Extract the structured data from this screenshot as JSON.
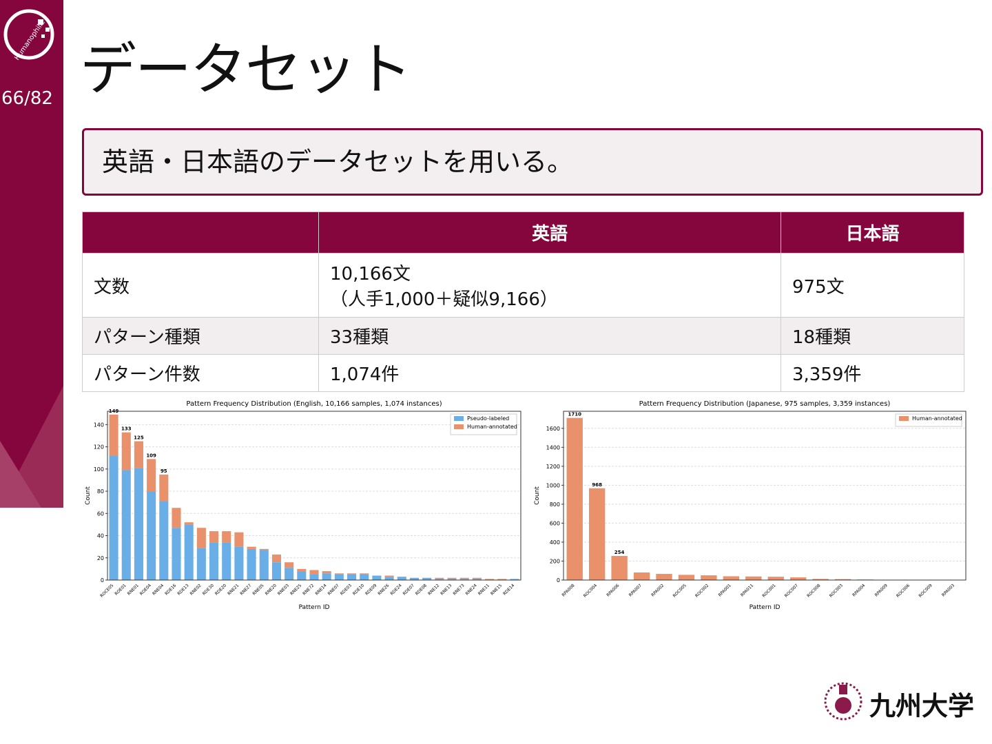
{
  "sidebar": {
    "logo_text": "Humanophilic",
    "page": "66/82"
  },
  "title": "データセット",
  "callout": "英語・日本語のデータセットを用いる。",
  "table": {
    "header": [
      "英語",
      "日本語"
    ],
    "rows": [
      {
        "label": "文数",
        "cells": [
          [
            "10,166文",
            "（人手1,000＋疑似9,166）"
          ],
          [
            "975文"
          ]
        ]
      },
      {
        "label": "パターン種類",
        "cells": [
          [
            "33種類"
          ],
          [
            "18種類"
          ]
        ]
      },
      {
        "label": "パターン件数",
        "cells": [
          [
            "1,074件"
          ],
          [
            "3,359件"
          ]
        ]
      }
    ]
  },
  "chart_data": [
    {
      "type": "bar",
      "stacked": true,
      "title": "Pattern Frequency Distribution (English, 10,166 samples, 1,074 instances)",
      "x_label": "Pattern ID",
      "y_label": "Count",
      "categories": [
        "ROCE05",
        "ROE01",
        "RNE01",
        "ROE04",
        "RNE04",
        "RDE16",
        "RDE13",
        "RNE02",
        "RDE30",
        "RDE20",
        "RNE21",
        "RNE27",
        "RNE05",
        "RNE20",
        "RNE03",
        "RNE25",
        "RNE72",
        "RNE14",
        "RNE07",
        "RDE03",
        "RDE10",
        "RDE09",
        "RNE26",
        "RDE24",
        "RDE07",
        "RDE08",
        "RNE12",
        "RNE13",
        "RNE73",
        "RNE24",
        "RNE11",
        "RNE15",
        "RDE14"
      ],
      "series": [
        {
          "name": "Pseudo-labeled",
          "color": "#6aaee8",
          "values": [
            112,
            99,
            101,
            80,
            71,
            47,
            50,
            29,
            34,
            34,
            30,
            28,
            27,
            16,
            11,
            8,
            5,
            6,
            5,
            5,
            5,
            4,
            3,
            3,
            2,
            2,
            1,
            1,
            1,
            1,
            0,
            0,
            1
          ]
        },
        {
          "name": "Human-annotated",
          "color": "#e8916a",
          "values": [
            37,
            34,
            24,
            29,
            24,
            18,
            2,
            18,
            10,
            10,
            13,
            2,
            1,
            7,
            5,
            2,
            4,
            2,
            1,
            1,
            1,
            0,
            1,
            0,
            0,
            0,
            1,
            1,
            1,
            1,
            1,
            1,
            0
          ]
        }
      ],
      "bar_labels": [
        149,
        133,
        125,
        109,
        95
      ],
      "ylim": [
        0,
        152
      ],
      "yticks": [
        0,
        20,
        40,
        60,
        80,
        100,
        120,
        140
      ],
      "grid": true,
      "legend": "upper right"
    },
    {
      "type": "bar",
      "stacked": true,
      "title": "Pattern Frequency Distribution (Japanese, 975 samples, 3,359 instances)",
      "x_label": "Pattern ID",
      "y_label": "Count",
      "categories": [
        "RPA008",
        "ROC004",
        "RPA006",
        "RPA007",
        "RPA002",
        "ROC005",
        "ROC002",
        "RPA001",
        "RPA011",
        "ROC001",
        "ROC007",
        "ROC008",
        "ROC003",
        "RPA004",
        "RPA009",
        "ROC006",
        "ROC009",
        "RPA003"
      ],
      "series": [
        {
          "name": "Human-annotated",
          "color": "#e8916a",
          "values": [
            1710,
            968,
            254,
            80,
            65,
            55,
            50,
            40,
            38,
            35,
            28,
            12,
            10,
            6,
            3,
            2,
            2,
            1
          ]
        }
      ],
      "bar_labels": [
        1710,
        968,
        254
      ],
      "ylim": [
        0,
        1780
      ],
      "yticks": [
        0,
        200,
        400,
        600,
        800,
        1000,
        1200,
        1400,
        1600
      ],
      "grid": true,
      "legend": "upper right"
    }
  ],
  "footer": {
    "university": "九州大学"
  }
}
